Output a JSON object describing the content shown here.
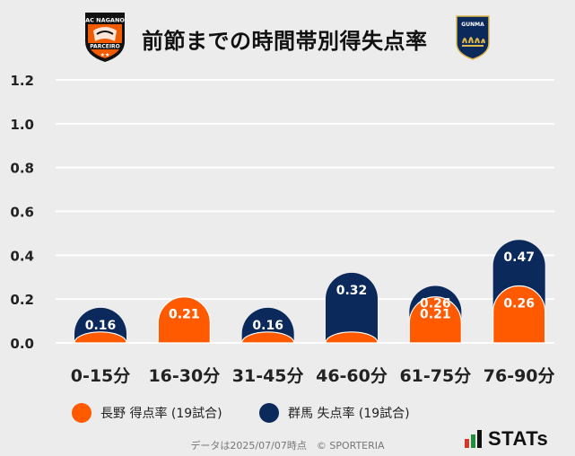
{
  "title": "前節までの時間帯別得失点率",
  "logos": {
    "home": {
      "text_top": "AC NAGANO",
      "text_bottom": "PARCEIRO",
      "colors": [
        "#f25a00",
        "#111111",
        "#ffffff"
      ]
    },
    "away": {
      "text": "GUNMA",
      "colors": [
        "#0b2a5b",
        "#e0b84a",
        "#ffffff"
      ]
    }
  },
  "legend": [
    {
      "label": "長野 得点率 (19試合)",
      "color": "#ff5a00"
    },
    {
      "label": "群馬 失点率 (19試合)",
      "color": "#0b2a5b"
    }
  ],
  "source_note": "データは2025/07/07時点　© SPORTERIA",
  "brand": "STATs",
  "colors": {
    "orange": "#ff5a00",
    "navy": "#0b2a5b",
    "grid": "#ffffff",
    "axis_text": "#222222"
  },
  "chart_data": {
    "type": "bar",
    "title": "前節までの時間帯別得失点率",
    "categories": [
      "0-15分",
      "16-30分",
      "31-45分",
      "46-60分",
      "61-75分",
      "76-90分"
    ],
    "series": [
      {
        "name": "長野 得点率 (19試合)",
        "values": [
          0.05,
          0.21,
          0.05,
          0.05,
          0.21,
          0.26
        ],
        "labels": [
          "",
          "0.21",
          "",
          "",
          "0.21",
          "0.26"
        ]
      },
      {
        "name": "群馬 失点率 (19試合)",
        "values": [
          0.16,
          0.21,
          0.16,
          0.32,
          0.26,
          0.47
        ],
        "labels": [
          "0.16",
          "0.21",
          "0.16",
          "0.32",
          "0.26",
          "0.47"
        ]
      }
    ],
    "yticks": [
      "0.0",
      "0.2",
      "0.4",
      "0.6",
      "0.8",
      "1.0",
      "1.2"
    ],
    "ylim": [
      0,
      1.2
    ],
    "grid": true,
    "legend_position": "bottom"
  }
}
